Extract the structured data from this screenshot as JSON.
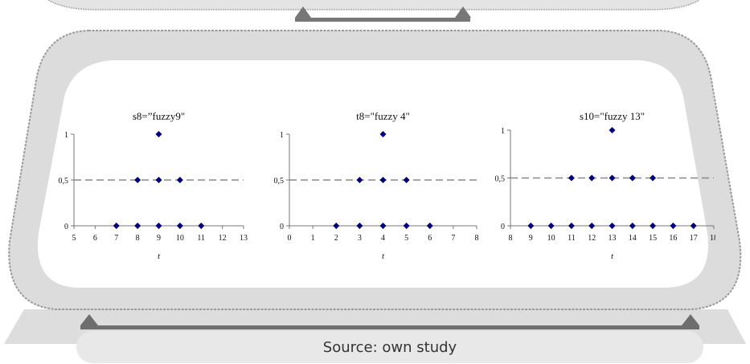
{
  "caption": "Source: own study",
  "colors": {
    "marker": "#000080",
    "dashed": "#888888",
    "axis": "#777777",
    "frame": "#d6d6d6"
  },
  "chart_data": [
    {
      "type": "scatter",
      "title": "s8=”fuzzy9\"",
      "xlabel": "t",
      "xlim": [
        5,
        13
      ],
      "ylim": [
        0,
        1
      ],
      "xticks": [
        "5",
        "6",
        "7",
        "8",
        "9",
        "10",
        "11",
        "12",
        "13"
      ],
      "yticks": [
        "0",
        "0,5",
        "1"
      ],
      "reference_line": 0.5,
      "points": [
        [
          7,
          0
        ],
        [
          8,
          0
        ],
        [
          9,
          0
        ],
        [
          10,
          0
        ],
        [
          11,
          0
        ],
        [
          8,
          0.5
        ],
        [
          9,
          0.5
        ],
        [
          10,
          0.5
        ],
        [
          9,
          1
        ]
      ]
    },
    {
      "type": "scatter",
      "title": "t8=\"fuzzy 4\"",
      "xlabel": "t",
      "xlim": [
        0,
        8
      ],
      "ylim": [
        0,
        1
      ],
      "xticks": [
        "0",
        "1",
        "2",
        "3",
        "4",
        "5",
        "6",
        "7",
        "8"
      ],
      "yticks": [
        "0",
        "0,5",
        "1"
      ],
      "reference_line": 0.5,
      "points": [
        [
          2,
          0
        ],
        [
          3,
          0
        ],
        [
          4,
          0
        ],
        [
          5,
          0
        ],
        [
          6,
          0
        ],
        [
          3,
          0.5
        ],
        [
          4,
          0.5
        ],
        [
          5,
          0.5
        ],
        [
          4,
          1
        ]
      ]
    },
    {
      "type": "scatter",
      "title": "s10=\"fuzzy 13\"",
      "xlabel": "t",
      "xlim": [
        8,
        18
      ],
      "ylim": [
        0,
        1
      ],
      "xticks": [
        "8",
        "9",
        "10",
        "11",
        "12",
        "13",
        "14",
        "15",
        "16",
        "17",
        "18"
      ],
      "yticks": [
        "0",
        "0,5",
        "1"
      ],
      "reference_line": 0.5,
      "points": [
        [
          9,
          0
        ],
        [
          10,
          0
        ],
        [
          11,
          0
        ],
        [
          12,
          0
        ],
        [
          13,
          0
        ],
        [
          14,
          0
        ],
        [
          15,
          0
        ],
        [
          16,
          0
        ],
        [
          17,
          0
        ],
        [
          11,
          0.5
        ],
        [
          12,
          0.5
        ],
        [
          13,
          0.5
        ],
        [
          14,
          0.5
        ],
        [
          15,
          0.5
        ],
        [
          13,
          1
        ]
      ]
    }
  ]
}
